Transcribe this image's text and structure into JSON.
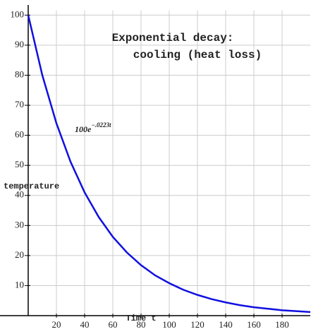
{
  "chart_data": {
    "type": "line",
    "title_lines": [
      "Exponential decay:",
      "cooling (heat loss)"
    ],
    "annotation": {
      "base": "100e",
      "exponent": "−.0223t"
    },
    "x_label": "Time t",
    "y_label": "temperature",
    "x": [
      0,
      10,
      20,
      30,
      40,
      50,
      60,
      70,
      80,
      90,
      100,
      110,
      120,
      130,
      140,
      150,
      160,
      170,
      180,
      190,
      200
    ],
    "series": [
      {
        "color": "#1010e0",
        "values": [
          100,
          80.0,
          64.0,
          51.2,
          41.0,
          32.8,
          26.2,
          21.0,
          16.8,
          13.4,
          10.8,
          8.6,
          6.9,
          5.5,
          4.4,
          3.5,
          2.8,
          2.3,
          1.8,
          1.5,
          1.2
        ]
      }
    ],
    "xlim": [
      0,
      200
    ],
    "ylim": [
      0,
      101.5
    ],
    "xticks": [
      20,
      40,
      60,
      80,
      100,
      120,
      140,
      160,
      180
    ],
    "yticks": [
      10,
      20,
      30,
      40,
      50,
      60,
      70,
      80,
      90,
      100
    ],
    "grid": true
  }
}
